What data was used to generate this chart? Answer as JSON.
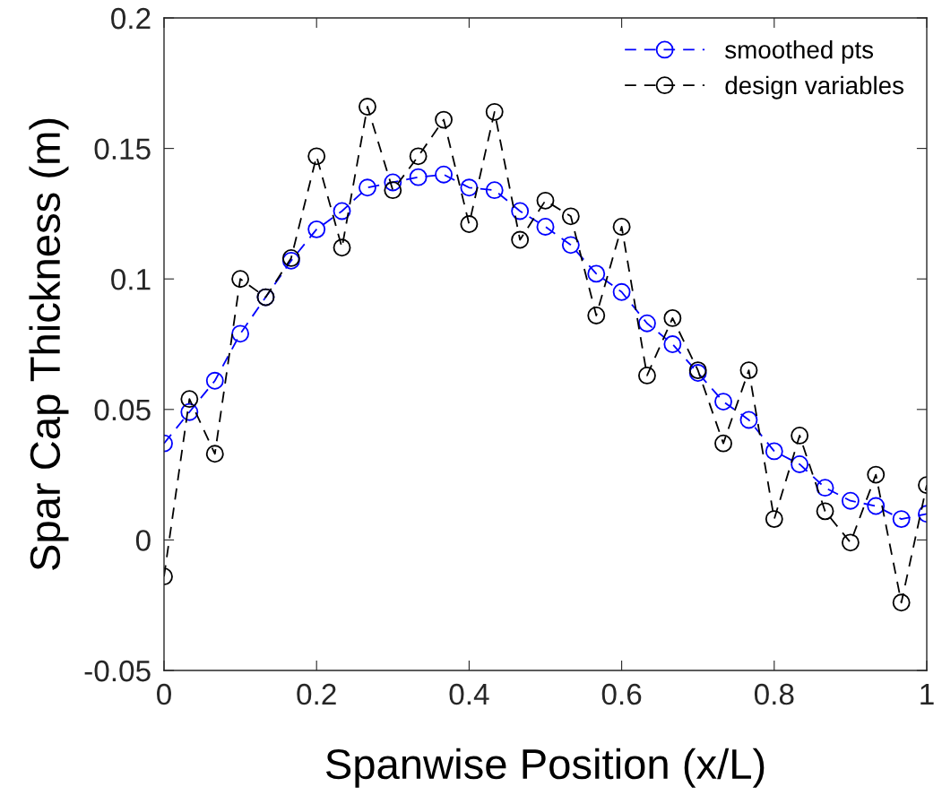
{
  "chart_data": {
    "type": "line",
    "xlabel": "Spanwise Position (x/L)",
    "ylabel": "Spar Cap Thickness (m)",
    "x": [
      0,
      0.0333,
      0.0667,
      0.1,
      0.1333,
      0.1667,
      0.2,
      0.2333,
      0.2667,
      0.3,
      0.3333,
      0.3667,
      0.4,
      0.4333,
      0.4667,
      0.5,
      0.5333,
      0.5667,
      0.6,
      0.6333,
      0.6667,
      0.7,
      0.7333,
      0.7667,
      0.8,
      0.8333,
      0.8667,
      0.9,
      0.9333,
      0.9667,
      1
    ],
    "series": [
      {
        "name": "smoothed pts",
        "color": "#0000ff",
        "values": [
          0.037,
          0.049,
          0.061,
          0.079,
          0.093,
          0.107,
          0.119,
          0.126,
          0.135,
          0.137,
          0.139,
          0.14,
          0.135,
          0.134,
          0.126,
          0.12,
          0.113,
          0.102,
          0.095,
          0.083,
          0.075,
          0.064,
          0.053,
          0.046,
          0.034,
          0.029,
          0.02,
          0.015,
          0.013,
          0.008,
          0.01
        ]
      },
      {
        "name": "design variables",
        "color": "#000000",
        "values": [
          -0.014,
          0.054,
          0.033,
          0.1,
          0.093,
          0.108,
          0.147,
          0.112,
          0.166,
          0.134,
          0.147,
          0.161,
          0.121,
          0.164,
          0.115,
          0.13,
          0.124,
          0.086,
          0.12,
          0.063,
          0.085,
          0.065,
          0.037,
          0.065,
          0.008,
          0.04,
          0.011,
          -0.001,
          0.025,
          -0.024,
          0.021
        ]
      }
    ],
    "xlim": [
      0,
      1
    ],
    "xticks": [
      0,
      0.2,
      0.4,
      0.6,
      0.8,
      1
    ],
    "ylim": [
      -0.05,
      0.2
    ],
    "yticks": [
      {
        "value": -0.05,
        "label": "-0.05"
      },
      0,
      0.05,
      0.1,
      0.15,
      0.2
    ],
    "marker": "circle",
    "line_style": "dashed",
    "legend": "top right",
    "grid": false
  }
}
